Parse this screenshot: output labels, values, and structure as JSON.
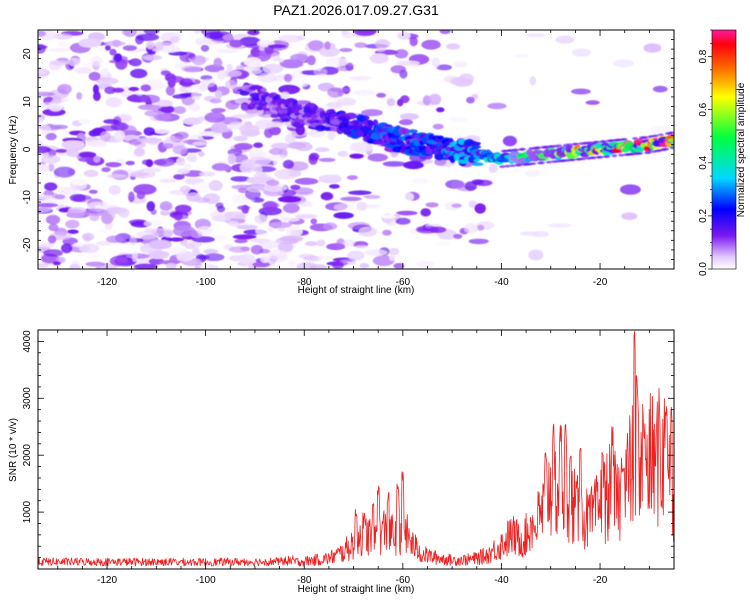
{
  "figure": {
    "title": "PAZ1.2026.017.09.27.G31"
  },
  "chart_data": [
    {
      "type": "heatmap",
      "title": "PAZ1.2026.017.09.27.G31",
      "xlabel": "Height of straight line (km)",
      "ylabel": "Frequency (Hz)",
      "xlim": [
        -134,
        -5
      ],
      "ylim": [
        -25,
        25
      ],
      "xticks": [
        -120,
        -100,
        -80,
        -60,
        -40,
        -20
      ],
      "yticks": [
        -20,
        -10,
        0,
        10,
        20
      ],
      "colorbar": {
        "label": "Normalized spectral amplitude",
        "range": [
          0,
          0.9
        ],
        "ticks": [
          0.0,
          0.2,
          0.4,
          0.6,
          0.8
        ],
        "tick_labels": [
          "0.0",
          "0.2",
          "0.4",
          "0.6",
          "0.8"
        ]
      },
      "ridge": {
        "description_points": [
          [
            -90,
            11
          ],
          [
            -80,
            7
          ],
          [
            -70,
            5
          ],
          [
            -60,
            2
          ],
          [
            -50,
            0
          ],
          [
            -40,
            -2
          ],
          [
            -30,
            -1
          ],
          [
            -20,
            0
          ],
          [
            -10,
            1
          ],
          [
            -5,
            2
          ]
        ],
        "peak_amplitude": [
          [
            -80,
            0.15
          ],
          [
            -65,
            0.25
          ],
          [
            -55,
            0.25
          ],
          [
            -40,
            0.35
          ],
          [
            -30,
            0.55
          ],
          [
            -20,
            0.75
          ],
          [
            -10,
            0.85
          ]
        ]
      }
    },
    {
      "type": "line",
      "xlabel": "Height of straight line (km)",
      "ylabel": "SNR (10 * v/v)",
      "xlim": [
        -134,
        -5
      ],
      "ylim": [
        0,
        4200
      ],
      "xticks": [
        -120,
        -100,
        -80,
        -60,
        -40,
        -20
      ],
      "yticks": [
        1000,
        2000,
        3000,
        4000
      ],
      "series": [
        {
          "name": "SNR",
          "color": "#ee2020",
          "x": [
            -134,
            -120,
            -100,
            -85,
            -80,
            -75,
            -72,
            -70,
            -68,
            -66,
            -64,
            -62,
            -60,
            -58,
            -56,
            -54,
            -50,
            -46,
            -43,
            -40,
            -38,
            -36,
            -34,
            -32,
            -30,
            -28,
            -26,
            -24,
            -22,
            -20,
            -18,
            -16,
            -14,
            -12,
            -10,
            -8,
            -6,
            -5
          ],
          "y": [
            120,
            120,
            115,
            125,
            160,
            220,
            350,
            550,
            750,
            650,
            800,
            700,
            850,
            500,
            300,
            250,
            180,
            200,
            280,
            500,
            700,
            600,
            800,
            1100,
            1700,
            1600,
            1400,
            1100,
            1000,
            1300,
            1600,
            1400,
            2000,
            2300,
            2200,
            2300,
            2400,
            1500
          ]
        }
      ],
      "spikes": [
        [
          -69.5,
          1050
        ],
        [
          -66,
          1150
        ],
        [
          -65,
          1520
        ],
        [
          -63,
          1350
        ],
        [
          -61,
          1580
        ],
        [
          -60,
          1720
        ],
        [
          -34,
          950
        ],
        [
          -31,
          2100
        ],
        [
          -29.5,
          2570
        ],
        [
          -28,
          2550
        ],
        [
          -27,
          2580
        ],
        [
          -26,
          2050
        ],
        [
          -24,
          2350
        ],
        [
          -19.5,
          2250
        ],
        [
          -17.5,
          2500
        ],
        [
          -15.5,
          2000
        ],
        [
          -13,
          4200
        ],
        [
          -12.5,
          3500
        ],
        [
          -11,
          2600
        ],
        [
          -8,
          2650
        ],
        [
          -6.5,
          3000
        ],
        [
          -5.5,
          2900
        ]
      ]
    }
  ]
}
